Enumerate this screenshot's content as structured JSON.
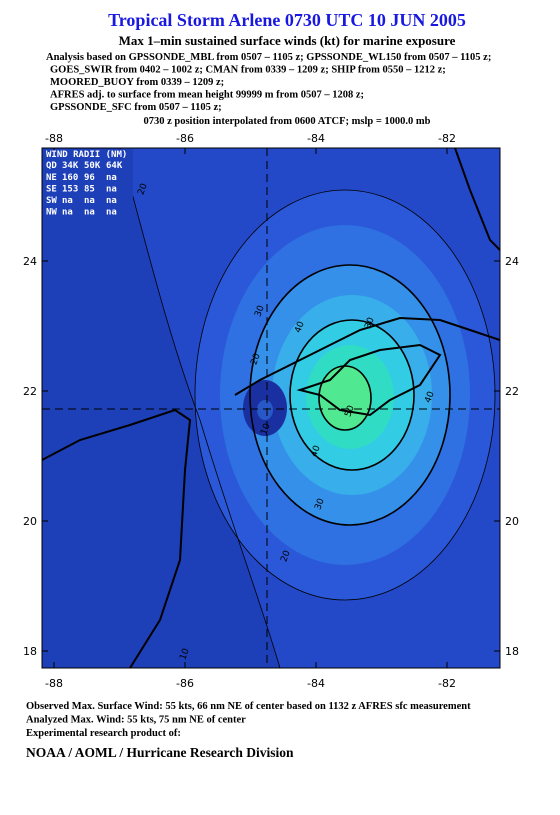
{
  "header": {
    "title": "Tropical Storm Arlene 0730 UTC 10 JUN 2005",
    "subtitle": "Max 1–min sustained surface winds (kt) for marine exposure",
    "analysis_lines": [
      "Analysis based on  GPSSONDE_MBL from 0507 – 1105 z;  GPSSONDE_WL150 from 0507 – 1105 z;",
      "GOES_SWIR from 0402 – 1002 z;  CMAN from 0339 – 1209 z;  SHIP from 0550 – 1212 z;",
      "MOORED_BUOY from 0339 – 1209 z;",
      "AFRES adj. to surface from mean height 99999 m from 0507 – 1208 z;",
      "GPSSONDE_SFC from 0507 – 1105 z;"
    ],
    "position_note": "0730 z position interpolated from 0600 ATCF; mslp = 1000.0 mb"
  },
  "map": {
    "lon_ticks": [
      -88,
      -86,
      -84,
      -82
    ],
    "lat_ticks": [
      18,
      20,
      22,
      24
    ],
    "wind_radii": {
      "title": "WIND RADII (NM)",
      "header": [
        "QD",
        "34K",
        "50K",
        "64K"
      ],
      "rows": [
        [
          "NE",
          "160",
          "96",
          "na"
        ],
        [
          "SE",
          "153",
          "85",
          "na"
        ],
        [
          "SW",
          "na",
          "na",
          "na"
        ],
        [
          "NW",
          "na",
          "na",
          "na"
        ]
      ]
    },
    "contour_labels": [
      "20",
      "30",
      "20",
      "40",
      "30",
      "10",
      "40",
      "50",
      "40",
      "30",
      "20",
      "10"
    ]
  },
  "footer": {
    "lines": [
      "Observed Max. Surface Wind: 55 kts, 66 nm NE of center based on 1132 z AFRES sfc measurement",
      "Analyzed Max. Wind: 55 kts, 75 nm NE of center",
      "Experimental research product of:"
    ],
    "org": "NOAA / AOML / Hurricane Research Division"
  }
}
